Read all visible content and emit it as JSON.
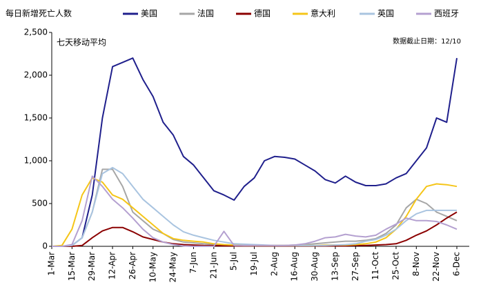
{
  "chart_data": {
    "type": "line",
    "title": "每日新增死亡人数",
    "subtitle": "七天移动平均",
    "annotation": "数据截止日期：12/10",
    "categories": [
      "1-Mar",
      null,
      "15-Mar",
      null,
      "29-Mar",
      null,
      "12-Apr",
      null,
      "26-Apr",
      null,
      "10-May",
      null,
      "24-May",
      null,
      "7-Jun",
      null,
      "21-Jun",
      null,
      "5-Jul",
      null,
      "19-Jul",
      null,
      "2-Aug",
      null,
      "16-Aug",
      null,
      "30-Aug",
      null,
      "13-Sep",
      null,
      "27-Sep",
      null,
      "11-Oct",
      null,
      "25-Oct",
      null,
      "8-Nov",
      null,
      "22-Nov",
      null,
      "6-Dec"
    ],
    "series": [
      {
        "name": "美国",
        "color": "#1f1f8c",
        "values": [
          0,
          0,
          10,
          100,
          600,
          1500,
          2100,
          2150,
          2200,
          1950,
          1750,
          1450,
          1300,
          1050,
          950,
          800,
          650,
          600,
          540,
          700,
          800,
          1000,
          1050,
          1040,
          1020,
          950,
          880,
          780,
          740,
          820,
          750,
          710,
          710,
          730,
          800,
          850,
          1000,
          1150,
          1500,
          1450,
          2200
        ]
      },
      {
        "name": "法国",
        "color": "#a6a6a6",
        "values": [
          0,
          0,
          10,
          100,
          400,
          900,
          900,
          700,
          400,
          300,
          200,
          150,
          80,
          50,
          40,
          30,
          20,
          15,
          10,
          10,
          10,
          10,
          10,
          10,
          15,
          20,
          30,
          40,
          50,
          60,
          60,
          70,
          90,
          150,
          250,
          450,
          550,
          500,
          400,
          350,
          300
        ]
      },
      {
        "name": "德国",
        "color": "#8b0000",
        "values": [
          0,
          0,
          0,
          10,
          100,
          180,
          220,
          220,
          170,
          110,
          80,
          50,
          30,
          20,
          15,
          10,
          8,
          6,
          5,
          5,
          5,
          5,
          5,
          5,
          5,
          5,
          5,
          5,
          5,
          5,
          10,
          10,
          15,
          20,
          30,
          70,
          130,
          180,
          250,
          330,
          400
        ]
      },
      {
        "name": "意大利",
        "color": "#f5c518",
        "values": [
          0,
          10,
          200,
          600,
          800,
          750,
          600,
          550,
          450,
          350,
          250,
          150,
          90,
          70,
          60,
          50,
          30,
          20,
          15,
          10,
          10,
          10,
          10,
          10,
          10,
          10,
          10,
          15,
          15,
          15,
          20,
          30,
          50,
          100,
          200,
          350,
          550,
          700,
          730,
          720,
          700
        ]
      },
      {
        "name": "英国",
        "color": "#a9c4e0",
        "values": [
          0,
          0,
          10,
          100,
          400,
          850,
          920,
          850,
          700,
          550,
          450,
          350,
          250,
          170,
          130,
          100,
          70,
          50,
          30,
          25,
          20,
          15,
          10,
          10,
          10,
          10,
          10,
          10,
          15,
          20,
          30,
          60,
          80,
          130,
          200,
          300,
          380,
          420,
          420,
          420,
          420
        ]
      },
      {
        "name": "西班牙",
        "color": "#b4a0d0",
        "values": [
          0,
          0,
          20,
          300,
          820,
          700,
          550,
          450,
          330,
          200,
          100,
          50,
          20,
          5,
          0,
          0,
          0,
          175,
          10,
          10,
          10,
          10,
          10,
          10,
          15,
          30,
          60,
          100,
          110,
          140,
          120,
          110,
          130,
          200,
          260,
          330,
          300,
          300,
          290,
          250,
          200
        ]
      }
    ],
    "ylim": [
      0,
      2500
    ],
    "yticks": [
      0,
      500,
      {
        "value": 1000,
        "label": "1,000"
      },
      {
        "value": 1500,
        "label": "1,500"
      },
      {
        "value": 2000,
        "label": "2,000"
      },
      {
        "value": 2500,
        "label": "2,500"
      }
    ],
    "grid": false
  }
}
